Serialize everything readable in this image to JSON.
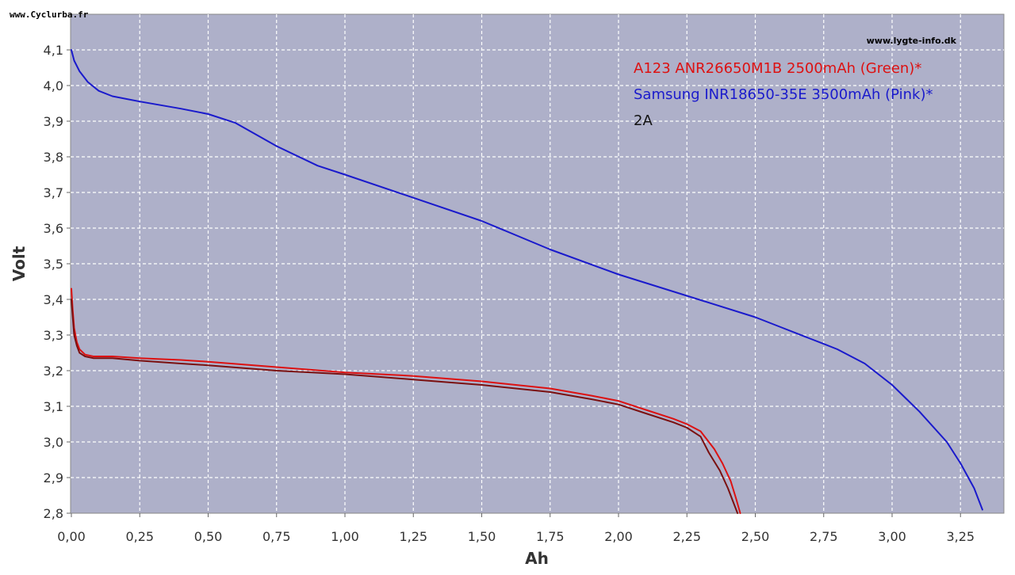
{
  "watermark": "www.Cyclurba.fr",
  "source": "www.lygte-info.dk",
  "chart_data": {
    "type": "line",
    "xlabel": "Ah",
    "ylabel": "Volt",
    "xlim": [
      0,
      3.4
    ],
    "ylim": [
      2.8,
      4.2
    ],
    "x_ticks": [
      "0,00",
      "0,25",
      "0,50",
      "0,75",
      "1,00",
      "1,25",
      "1,50",
      "1,75",
      "2,00",
      "2,25",
      "2,50",
      "2,75",
      "3,00",
      "3,25"
    ],
    "x_tick_values": [
      0,
      0.25,
      0.5,
      0.75,
      1.0,
      1.25,
      1.5,
      1.75,
      2.0,
      2.25,
      2.5,
      2.75,
      3.0,
      3.25
    ],
    "y_ticks": [
      "2,8",
      "2,9",
      "3,0",
      "3,1",
      "3,2",
      "3,3",
      "3,4",
      "3,5",
      "3,6",
      "3,7",
      "3,8",
      "3,9",
      "4,0",
      "4,1"
    ],
    "y_tick_values": [
      2.8,
      2.9,
      3.0,
      3.1,
      3.2,
      3.3,
      3.4,
      3.5,
      3.6,
      3.7,
      3.8,
      3.9,
      4.0,
      4.1
    ],
    "grid": true,
    "background": "#aeb0c9",
    "legend": [
      {
        "text": "A123 ANR26650M1B 2500mAh (Green)*",
        "color": "#dd1111"
      },
      {
        "text": "Samsung INR18650-35E 3500mAh (Pink)*",
        "color": "#1a1acc"
      },
      {
        "text": "2A",
        "color": "#111111"
      }
    ],
    "legend_position": "top-right",
    "series": [
      {
        "color": "#1a1acc",
        "x": [
          0.0,
          0.01,
          0.03,
          0.06,
          0.1,
          0.15,
          0.25,
          0.4,
          0.5,
          0.6,
          0.75,
          0.9,
          1.0,
          1.25,
          1.5,
          1.75,
          2.0,
          2.25,
          2.5,
          2.6,
          2.7,
          2.75,
          2.8,
          2.9,
          3.0,
          3.1,
          3.2,
          3.25,
          3.3,
          3.33
        ],
        "y": [
          4.1,
          4.07,
          4.04,
          4.01,
          3.985,
          3.97,
          3.955,
          3.935,
          3.92,
          3.895,
          3.83,
          3.775,
          3.75,
          3.685,
          3.62,
          3.54,
          3.47,
          3.41,
          3.35,
          3.32,
          3.29,
          3.275,
          3.26,
          3.22,
          3.16,
          3.085,
          3.0,
          2.94,
          2.87,
          2.81
        ]
      },
      {
        "color": "#dd1111",
        "x": [
          0.0,
          0.005,
          0.01,
          0.02,
          0.03,
          0.05,
          0.08,
          0.15,
          0.25,
          0.4,
          0.5,
          0.75,
          1.0,
          1.25,
          1.5,
          1.75,
          1.9,
          2.0,
          2.1,
          2.2,
          2.25,
          2.3,
          2.35,
          2.38,
          2.41,
          2.43,
          2.445
        ],
        "y": [
          3.43,
          3.37,
          3.32,
          3.28,
          3.26,
          3.245,
          3.24,
          3.24,
          3.235,
          3.23,
          3.225,
          3.21,
          3.195,
          3.185,
          3.17,
          3.15,
          3.13,
          3.115,
          3.09,
          3.065,
          3.05,
          3.03,
          2.98,
          2.94,
          2.89,
          2.84,
          2.8
        ]
      },
      {
        "color": "#7a1010",
        "x": [
          0.0,
          0.005,
          0.01,
          0.02,
          0.03,
          0.05,
          0.08,
          0.15,
          0.25,
          0.4,
          0.5,
          0.75,
          1.0,
          1.25,
          1.5,
          1.75,
          1.9,
          2.0,
          2.1,
          2.2,
          2.25,
          2.3,
          2.33,
          2.37,
          2.4,
          2.42,
          2.435
        ],
        "y": [
          3.4,
          3.35,
          3.3,
          3.27,
          3.25,
          3.24,
          3.235,
          3.235,
          3.228,
          3.22,
          3.215,
          3.2,
          3.19,
          3.175,
          3.16,
          3.14,
          3.12,
          3.105,
          3.08,
          3.055,
          3.04,
          3.015,
          2.97,
          2.92,
          2.87,
          2.83,
          2.8
        ]
      }
    ]
  }
}
